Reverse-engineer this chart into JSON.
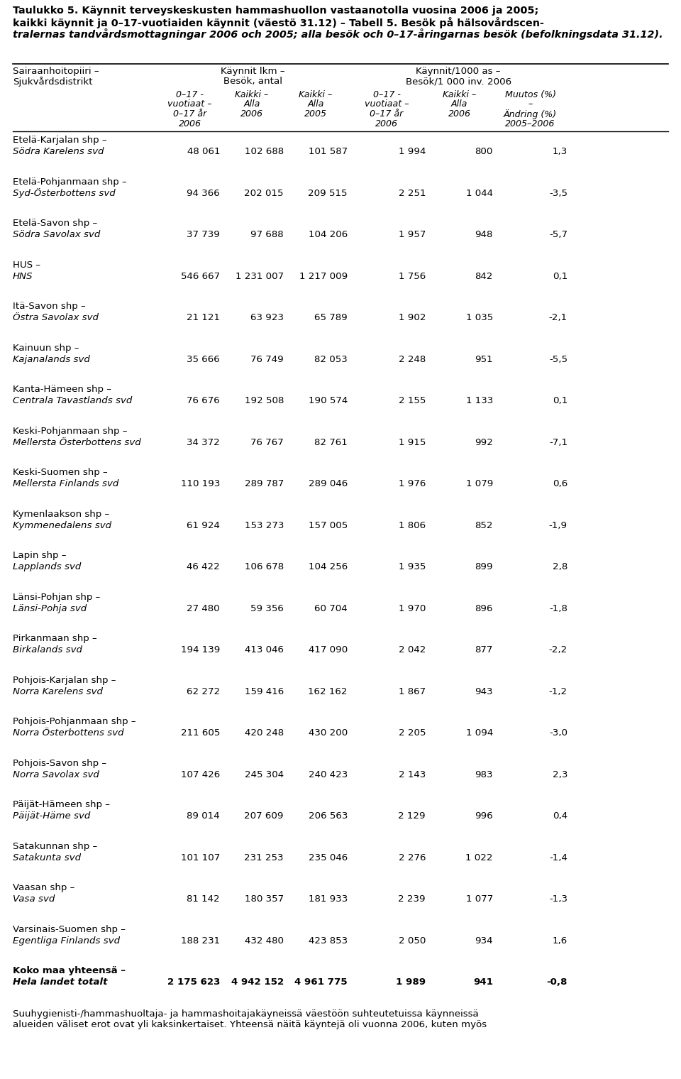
{
  "rows": [
    {
      "label1": "Etelä-Karjalan shp –",
      "label2": "Södra Karelens svd",
      "v1": "48 061",
      "v2": "102 688",
      "v3": "101 587",
      "v4": "1 994",
      "v5": "800",
      "v6": "1,3",
      "bold": false
    },
    {
      "label1": "Etelä-Pohjanmaan shp –",
      "label2": "Syd-Österbottens svd",
      "v1": "94 366",
      "v2": "202 015",
      "v3": "209 515",
      "v4": "2 251",
      "v5": "1 044",
      "v6": "-3,5",
      "bold": false
    },
    {
      "label1": "Etelä-Savon shp –",
      "label2": "Södra Savolax svd",
      "v1": "37 739",
      "v2": "97 688",
      "v3": "104 206",
      "v4": "1 957",
      "v5": "948",
      "v6": "-5,7",
      "bold": false
    },
    {
      "label1": "HUS –",
      "label2": "HNS",
      "v1": "546 667",
      "v2": "1 231 007",
      "v3": "1 217 009",
      "v4": "1 756",
      "v5": "842",
      "v6": "0,1",
      "bold": false
    },
    {
      "label1": "Itä-Savon shp –",
      "label2": "Östra Savolax svd",
      "v1": "21 121",
      "v2": "63 923",
      "v3": "65 789",
      "v4": "1 902",
      "v5": "1 035",
      "v6": "-2,1",
      "bold": false
    },
    {
      "label1": "Kainuun shp –",
      "label2": "Kajanalands svd",
      "v1": "35 666",
      "v2": "76 749",
      "v3": "82 053",
      "v4": "2 248",
      "v5": "951",
      "v6": "-5,5",
      "bold": false
    },
    {
      "label1": "Kanta-Hämeen shp –",
      "label2": "Centrala Tavastlands svd",
      "v1": "76 676",
      "v2": "192 508",
      "v3": "190 574",
      "v4": "2 155",
      "v5": "1 133",
      "v6": "0,1",
      "bold": false
    },
    {
      "label1": "Keski-Pohjanmaan shp –",
      "label2": "Mellersta Österbottens svd",
      "v1": "34 372",
      "v2": "76 767",
      "v3": "82 761",
      "v4": "1 915",
      "v5": "992",
      "v6": "-7,1",
      "bold": false
    },
    {
      "label1": "Keski-Suomen shp –",
      "label2": "Mellersta Finlands svd",
      "v1": "110 193",
      "v2": "289 787",
      "v3": "289 046",
      "v4": "1 976",
      "v5": "1 079",
      "v6": "0,6",
      "bold": false
    },
    {
      "label1": "Kymenlaakson shp –",
      "label2": "Kymmenedalens svd",
      "v1": "61 924",
      "v2": "153 273",
      "v3": "157 005",
      "v4": "1 806",
      "v5": "852",
      "v6": "-1,9",
      "bold": false
    },
    {
      "label1": "Lapin shp –",
      "label2": "Lapplands svd",
      "v1": "46 422",
      "v2": "106 678",
      "v3": "104 256",
      "v4": "1 935",
      "v5": "899",
      "v6": "2,8",
      "bold": false
    },
    {
      "label1": "Länsi-Pohjan shp –",
      "label2": "Länsi-Pohja svd",
      "v1": "27 480",
      "v2": "59 356",
      "v3": "60 704",
      "v4": "1 970",
      "v5": "896",
      "v6": "-1,8",
      "bold": false
    },
    {
      "label1": "Pirkanmaan shp –",
      "label2": "Birkalands svd",
      "v1": "194 139",
      "v2": "413 046",
      "v3": "417 090",
      "v4": "2 042",
      "v5": "877",
      "v6": "-2,2",
      "bold": false
    },
    {
      "label1": "Pohjois-Karjalan shp –",
      "label2": "Norra Karelens svd",
      "v1": "62 272",
      "v2": "159 416",
      "v3": "162 162",
      "v4": "1 867",
      "v5": "943",
      "v6": "-1,2",
      "bold": false
    },
    {
      "label1": "Pohjois-Pohjanmaan shp –",
      "label2": "Norra Österbottens svd",
      "v1": "211 605",
      "v2": "420 248",
      "v3": "430 200",
      "v4": "2 205",
      "v5": "1 094",
      "v6": "-3,0",
      "bold": false
    },
    {
      "label1": "Pohjois-Savon shp –",
      "label2": "Norra Savolax svd",
      "v1": "107 426",
      "v2": "245 304",
      "v3": "240 423",
      "v4": "2 143",
      "v5": "983",
      "v6": "2,3",
      "bold": false
    },
    {
      "label1": "Päijät-Hämeen shp –",
      "label2": "Päijät-Häme svd",
      "v1": "89 014",
      "v2": "207 609",
      "v3": "206 563",
      "v4": "2 129",
      "v5": "996",
      "v6": "0,4",
      "bold": false
    },
    {
      "label1": "Satakunnan shp –",
      "label2": "Satakunta svd",
      "v1": "101 107",
      "v2": "231 253",
      "v3": "235 046",
      "v4": "2 276",
      "v5": "1 022",
      "v6": "-1,4",
      "bold": false
    },
    {
      "label1": "Vaasan shp –",
      "label2": "Vasa svd",
      "v1": "81 142",
      "v2": "180 357",
      "v3": "181 933",
      "v4": "2 239",
      "v5": "1 077",
      "v6": "-1,3",
      "bold": false
    },
    {
      "label1": "Varsinais-Suomen shp –",
      "label2": "Egentliga Finlands svd",
      "v1": "188 231",
      "v2": "432 480",
      "v3": "423 853",
      "v4": "2 050",
      "v5": "934",
      "v6": "1,6",
      "bold": false
    },
    {
      "label1": "Koko maa yhteensä –",
      "label2": "Hela landet totalt",
      "v1": "2 175 623",
      "v2": "4 942 152",
      "v3": "4 961 775",
      "v4": "1 989",
      "v5": "941",
      "v6": "-0,8",
      "bold": true
    }
  ],
  "footer_lines": [
    "Suuhygienisti-/hammashuoltaja- ja hammashoitajakäyneissä väestöön suhteutetuissa käynneissä",
    "alueiden väliset erot ovat yli kaksinkertaiset. Yhteensä näitä käyntejä oli vuonna 2006, kuten myös"
  ],
  "col_subheaders": [
    [
      "0–17 -",
      "vuotiaat –",
      "0–17 år",
      "2006"
    ],
    [
      "Kaikki –",
      "Alla",
      "2006",
      ""
    ],
    [
      "Kaikki –",
      "Alla",
      "2005",
      ""
    ],
    [
      "0–17 -",
      "vuotiaat –",
      "0–17 år",
      "2006"
    ],
    [
      "Kaikki –",
      "Alla",
      "2006",
      ""
    ],
    [
      "Muutos (%)",
      "–",
      "Ändring (%)",
      "2005–2006"
    ]
  ]
}
